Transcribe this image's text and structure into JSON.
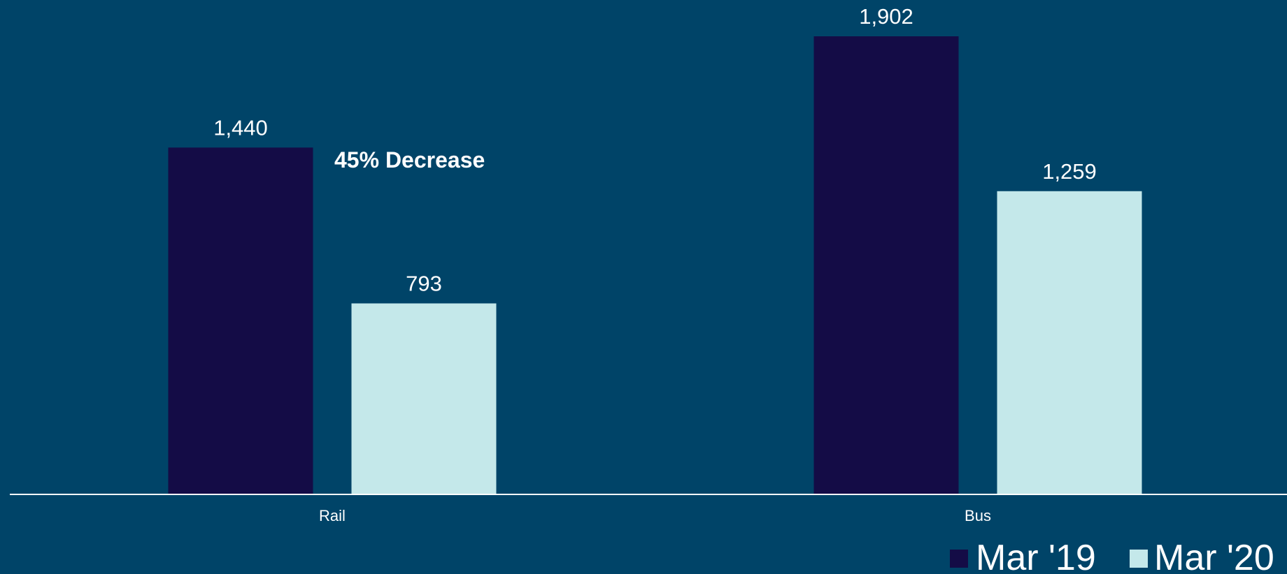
{
  "chart_data": {
    "type": "bar",
    "title": "",
    "xlabel": "",
    "ylabel": "",
    "categories": [
      "Rail",
      "Bus"
    ],
    "series": [
      {
        "name": "Mar '19",
        "color": "#140c46",
        "values": [
          1440,
          1902
        ],
        "labels": [
          "1,440",
          "1,902"
        ]
      },
      {
        "name": "Mar '20",
        "color": "#c4e8ea",
        "values": [
          793,
          1259
        ],
        "labels": [
          "793",
          "1,259"
        ]
      }
    ],
    "ylim": [
      0,
      1902
    ],
    "grid": false,
    "legend": "bottom-right",
    "annotations": [
      {
        "text": "45% Decrease",
        "category": "Rail"
      }
    ],
    "colors": {
      "background": "#004468",
      "axis": "#ffffff",
      "text": "#ffffff"
    }
  }
}
